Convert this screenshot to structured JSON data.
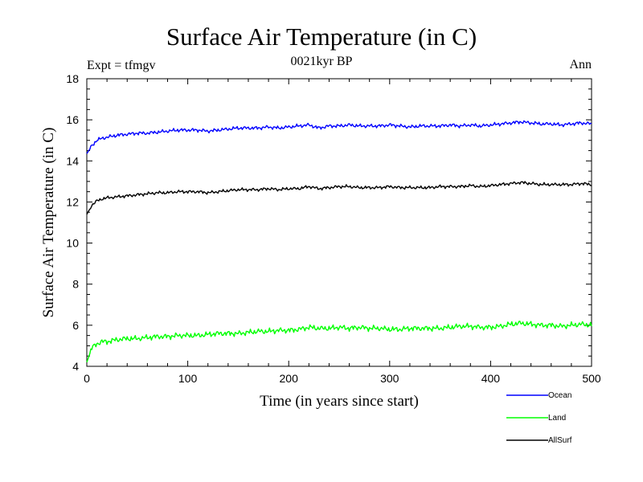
{
  "header": {
    "expt_label": "Expt = tfmgv",
    "period_label": "Ann"
  },
  "chart_data": {
    "type": "line",
    "title": "Surface Air Temperature (in C)",
    "subtitle": "0021kyr BP",
    "xlabel": "Time (in years since start)",
    "ylabel": "Surface Air Temperature (in C)",
    "xlim": [
      0,
      500
    ],
    "ylim": [
      4,
      18
    ],
    "xticks": [
      0,
      100,
      200,
      300,
      400,
      500
    ],
    "yticks": [
      4,
      6,
      8,
      10,
      12,
      14,
      16,
      18
    ],
    "grid": false,
    "legend_position": "bottom-right, outside plot",
    "x": [
      0,
      5,
      10,
      15,
      20,
      30,
      40,
      50,
      60,
      70,
      80,
      90,
      100,
      110,
      120,
      130,
      140,
      150,
      160,
      170,
      180,
      190,
      200,
      210,
      220,
      230,
      240,
      250,
      260,
      270,
      280,
      290,
      300,
      310,
      320,
      330,
      340,
      350,
      360,
      370,
      380,
      390,
      400,
      410,
      420,
      430,
      440,
      450,
      460,
      470,
      480,
      490,
      500
    ],
    "series": [
      {
        "name": "Ocean",
        "color": "#0000ff",
        "values": [
          14.35,
          14.75,
          15.0,
          15.1,
          15.15,
          15.25,
          15.3,
          15.35,
          15.35,
          15.4,
          15.45,
          15.5,
          15.5,
          15.5,
          15.45,
          15.5,
          15.55,
          15.6,
          15.6,
          15.6,
          15.65,
          15.6,
          15.65,
          15.7,
          15.75,
          15.6,
          15.7,
          15.7,
          15.75,
          15.7,
          15.7,
          15.7,
          15.75,
          15.7,
          15.65,
          15.7,
          15.7,
          15.7,
          15.75,
          15.7,
          15.75,
          15.7,
          15.75,
          15.8,
          15.85,
          15.9,
          15.85,
          15.8,
          15.8,
          15.75,
          15.8,
          15.85,
          15.8
        ]
      },
      {
        "name": "Land",
        "color": "#00ff00",
        "values": [
          4.2,
          4.9,
          5.1,
          5.2,
          5.2,
          5.3,
          5.35,
          5.35,
          5.4,
          5.45,
          5.45,
          5.5,
          5.5,
          5.5,
          5.55,
          5.6,
          5.6,
          5.6,
          5.65,
          5.7,
          5.7,
          5.75,
          5.75,
          5.8,
          5.9,
          5.85,
          5.85,
          5.9,
          5.85,
          5.9,
          5.85,
          5.85,
          5.8,
          5.8,
          5.85,
          5.85,
          5.85,
          5.85,
          5.9,
          5.95,
          5.95,
          5.9,
          5.9,
          5.95,
          6.05,
          6.1,
          6.05,
          6.0,
          6.0,
          5.95,
          6.0,
          6.05,
          6.0
        ]
      },
      {
        "name": "AllSurf",
        "color": "#000000",
        "values": [
          11.4,
          11.85,
          12.05,
          12.15,
          12.2,
          12.25,
          12.3,
          12.35,
          12.4,
          12.45,
          12.45,
          12.5,
          12.5,
          12.5,
          12.45,
          12.5,
          12.55,
          12.6,
          12.6,
          12.6,
          12.65,
          12.6,
          12.65,
          12.65,
          12.75,
          12.65,
          12.7,
          12.75,
          12.75,
          12.7,
          12.7,
          12.7,
          12.75,
          12.7,
          12.7,
          12.7,
          12.7,
          12.75,
          12.75,
          12.75,
          12.8,
          12.75,
          12.8,
          12.85,
          12.9,
          12.95,
          12.9,
          12.85,
          12.85,
          12.85,
          12.85,
          12.9,
          12.85
        ]
      }
    ]
  }
}
